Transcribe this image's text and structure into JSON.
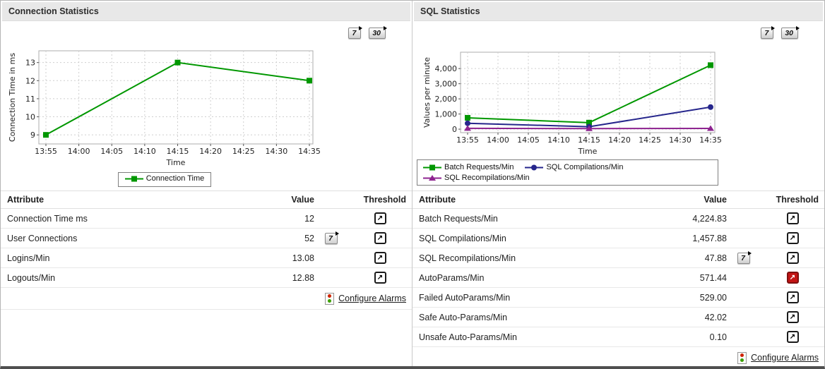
{
  "colors": {
    "green_series": "#009700",
    "navy_series": "#26268C",
    "purple_series": "#8E2490",
    "alarm_red": "#C31414",
    "header_bg": "#E8E8E8"
  },
  "chart_data": [
    {
      "type": "line",
      "title": "",
      "xlabel": "Time",
      "ylabel": "Connection Time in ms",
      "x_ticks": [
        "13:55",
        "14:00",
        "14:05",
        "14:10",
        "14:15",
        "14:20",
        "14:25",
        "14:30",
        "14:35"
      ],
      "y_ticks": [
        9,
        10,
        11,
        12,
        13
      ],
      "y_tick_labels": [
        "9",
        "10",
        "11",
        "12",
        "13"
      ],
      "ylim": [
        8.5,
        13.65
      ],
      "grid": true,
      "legend_position": "bottom",
      "series": [
        {
          "name": "Connection Time",
          "color": "#009700",
          "marker": "square",
          "x_idx": [
            0,
            4,
            8
          ],
          "values": [
            9,
            13,
            12
          ]
        }
      ]
    },
    {
      "type": "line",
      "title": "",
      "xlabel": "Time",
      "ylabel": "Values per minute",
      "x_ticks": [
        "13:55",
        "14:00",
        "14:05",
        "14:10",
        "14:15",
        "14:20",
        "14:25",
        "14:30",
        "14:35"
      ],
      "y_ticks": [
        0,
        1000,
        2000,
        3000,
        4000
      ],
      "y_tick_labels": [
        "0",
        "1,000",
        "2,000",
        "3,000",
        "4,000"
      ],
      "ylim": [
        -230,
        5080
      ],
      "grid": true,
      "legend_position": "bottom",
      "series": [
        {
          "name": "Batch Requests/Min",
          "color": "#009700",
          "marker": "square",
          "x_idx": [
            0,
            4,
            8
          ],
          "values": [
            750,
            430,
            4224.83
          ]
        },
        {
          "name": "SQL Compilations/Min",
          "color": "#26268C",
          "marker": "circle",
          "x_idx": [
            0,
            4,
            8
          ],
          "values": [
            390,
            160,
            1457.88
          ]
        },
        {
          "name": "SQL Recompilations/Min",
          "color": "#8E2490",
          "marker": "triangle",
          "x_idx": [
            0,
            4,
            8
          ],
          "values": [
            55,
            40,
            47.88
          ]
        }
      ]
    }
  ],
  "panels": [
    {
      "title": "Connection Statistics",
      "range_buttons": [
        "7",
        "30"
      ],
      "table": {
        "headers": {
          "attribute": "Attribute",
          "value": "Value",
          "threshold": "Threshold"
        },
        "rows": [
          {
            "attribute": "Connection Time ms",
            "value": "12",
            "history_button": null,
            "threshold_state": "normal"
          },
          {
            "attribute": "User Connections",
            "value": "52",
            "history_button": "7",
            "threshold_state": "normal"
          },
          {
            "attribute": "Logins/Min",
            "value": "13.08",
            "history_button": null,
            "threshold_state": "normal"
          },
          {
            "attribute": "Logouts/Min",
            "value": "12.88",
            "history_button": null,
            "threshold_state": "normal"
          }
        ],
        "configure_alarms": "Configure Alarms"
      }
    },
    {
      "title": "SQL Statistics",
      "range_buttons": [
        "7",
        "30"
      ],
      "table": {
        "headers": {
          "attribute": "Attribute",
          "value": "Value",
          "threshold": "Threshold"
        },
        "rows": [
          {
            "attribute": "Batch Requests/Min",
            "value": "4,224.83",
            "history_button": null,
            "threshold_state": "normal"
          },
          {
            "attribute": "SQL Compilations/Min",
            "value": "1,457.88",
            "history_button": null,
            "threshold_state": "normal"
          },
          {
            "attribute": "SQL Recompilations/Min",
            "value": "47.88",
            "history_button": "7",
            "threshold_state": "normal"
          },
          {
            "attribute": "AutoParams/Min",
            "value": "571.44",
            "history_button": null,
            "threshold_state": "alarm"
          },
          {
            "attribute": "Failed AutoParams/Min",
            "value": "529.00",
            "history_button": null,
            "threshold_state": "normal"
          },
          {
            "attribute": "Safe Auto-Params/Min",
            "value": "42.02",
            "history_button": null,
            "threshold_state": "normal"
          },
          {
            "attribute": "Unsafe Auto-Params/Min",
            "value": "0.10",
            "history_button": null,
            "threshold_state": "normal"
          }
        ],
        "configure_alarms": "Configure Alarms"
      }
    }
  ]
}
